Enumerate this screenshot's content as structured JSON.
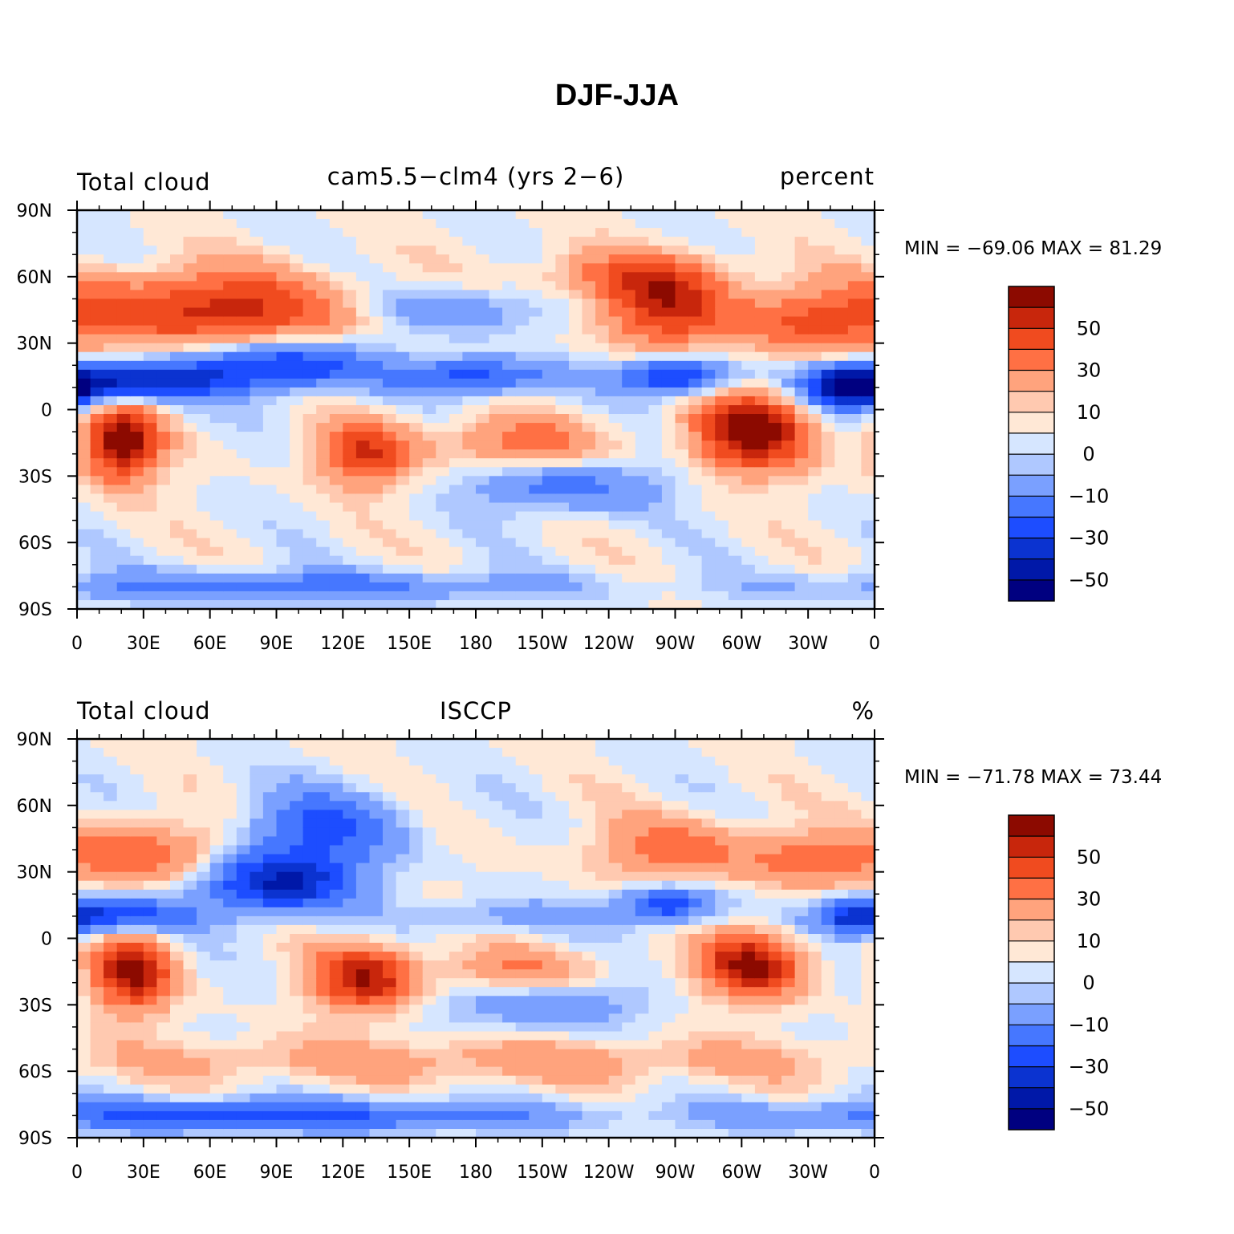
{
  "title": "DJF-JJA",
  "colors": [
    "#000080",
    "#0018a8",
    "#0b33d0",
    "#1d4dff",
    "#4677ff",
    "#7aa0ff",
    "#afc8ff",
    "#d6e6ff",
    "#ffe8d6",
    "#ffc9b0",
    "#ffa37d",
    "#ff7044",
    "#f04b1f",
    "#c8260c",
    "#8c0a00"
  ],
  "chart_data": [
    {
      "type": "heatmap",
      "left_label": "Total cloud",
      "center_label": "cam5.5−clm4 (yrs 2−6)",
      "right_label": "percent",
      "min_max_text": "MIN = −69.06 MAX =  81.29",
      "min": -69.06,
      "max": 81.29,
      "x_ticks": [
        "0",
        "30E",
        "60E",
        "90E",
        "120E",
        "150E",
        "180",
        "150W",
        "120W",
        "90W",
        "60W",
        "30W",
        "0"
      ],
      "y_ticks": [
        "90N",
        "60N",
        "30N",
        "0",
        "30S",
        "60S",
        "90S"
      ],
      "xlim": [
        0,
        360
      ],
      "ylim": [
        -90,
        90
      ],
      "levels": [
        -60,
        -50,
        -40,
        -30,
        -20,
        -10,
        -5,
        0,
        5,
        10,
        20,
        30,
        40,
        50
      ],
      "colorbar_labels": [
        "50",
        "30",
        "10",
        "0",
        "−10",
        "−30",
        "−50"
      ]
    },
    {
      "type": "heatmap",
      "left_label": "Total cloud",
      "center_label": "ISCCP",
      "right_label": "%",
      "min_max_text": "MIN = −71.78 MAX =  73.44",
      "min": -71.78,
      "max": 73.44,
      "x_ticks": [
        "0",
        "30E",
        "60E",
        "90E",
        "120E",
        "150E",
        "180",
        "150W",
        "120W",
        "90W",
        "60W",
        "30W",
        "0"
      ],
      "y_ticks": [
        "90N",
        "60N",
        "30N",
        "0",
        "30S",
        "60S",
        "90S"
      ],
      "xlim": [
        0,
        360
      ],
      "ylim": [
        -90,
        90
      ],
      "levels": [
        -60,
        -50,
        -40,
        -30,
        -20,
        -10,
        -5,
        0,
        5,
        10,
        20,
        30,
        40,
        50
      ],
      "colorbar_labels": [
        "50",
        "30",
        "10",
        "0",
        "−10",
        "−30",
        "−50"
      ]
    }
  ]
}
